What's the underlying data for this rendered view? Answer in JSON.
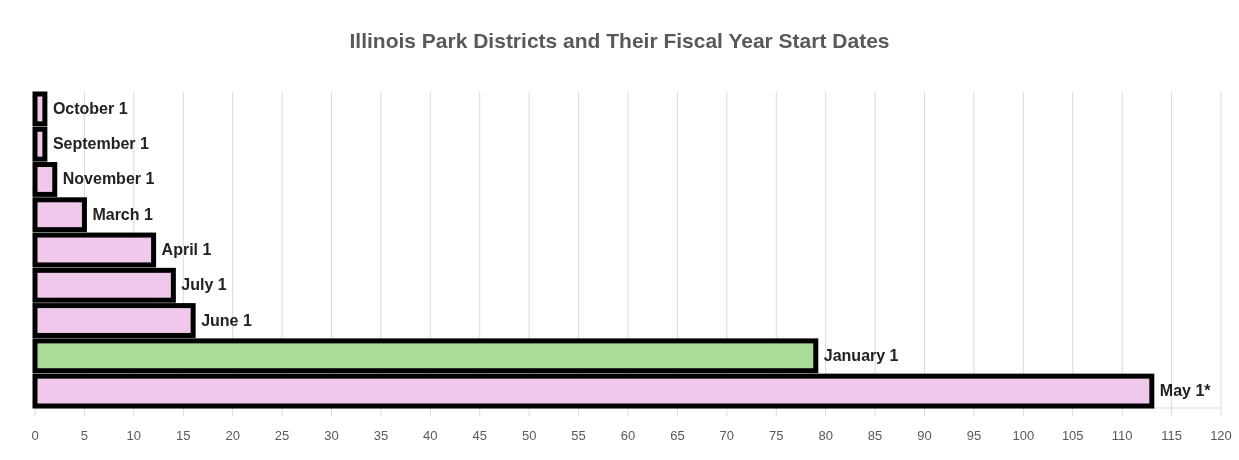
{
  "chart_data": {
    "type": "bar",
    "orientation": "horizontal",
    "title": "Illinois Park Districts and Their Fiscal Year Start Dates",
    "categories": [
      "October 1",
      "September 1",
      "November 1",
      "March 1",
      "April 1",
      "July 1",
      "June 1",
      "January 1",
      "May 1*"
    ],
    "values": [
      1,
      1,
      2,
      5,
      12,
      14,
      16,
      79,
      113
    ],
    "colors": [
      "#f0c8ec",
      "#f0c8ec",
      "#f0c8ec",
      "#f0c8ec",
      "#f0c8ec",
      "#f0c8ec",
      "#f0c8ec",
      "#a8dc98",
      "#f0c8ec"
    ],
    "xlim": [
      0,
      120
    ],
    "xticks": [
      0,
      5,
      10,
      15,
      20,
      25,
      30,
      35,
      40,
      45,
      50,
      55,
      60,
      65,
      70,
      75,
      80,
      85,
      90,
      95,
      100,
      105,
      110,
      115,
      120
    ],
    "grid": "x"
  }
}
